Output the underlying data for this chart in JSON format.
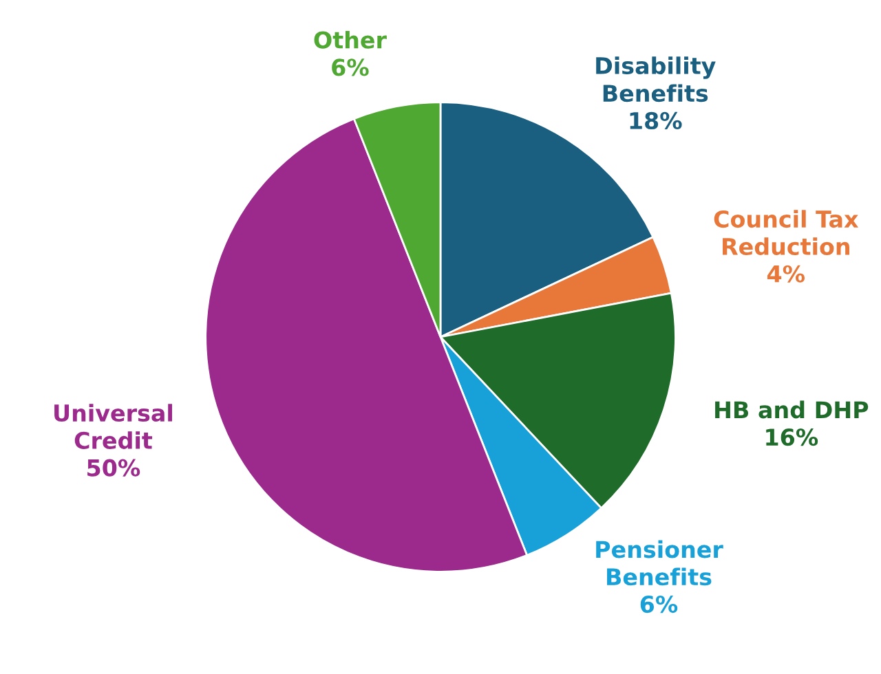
{
  "chart_data": {
    "type": "pie",
    "categories": [
      "Disability\nBenefits",
      "Council Tax\nReduction",
      "HB and DHP",
      "Pensioner\nBenefits",
      "Universal\nCredit",
      "Other"
    ],
    "values": [
      18,
      4,
      16,
      6,
      50,
      6
    ],
    "colors": [
      "#1a5e80",
      "#e8773a",
      "#1e6b2a",
      "#18a0d8",
      "#9b2a8c",
      "#4fa832"
    ],
    "value_labels": [
      "18%",
      "4%",
      "16%",
      "6%",
      "50%",
      "6%"
    ],
    "legend": false
  }
}
